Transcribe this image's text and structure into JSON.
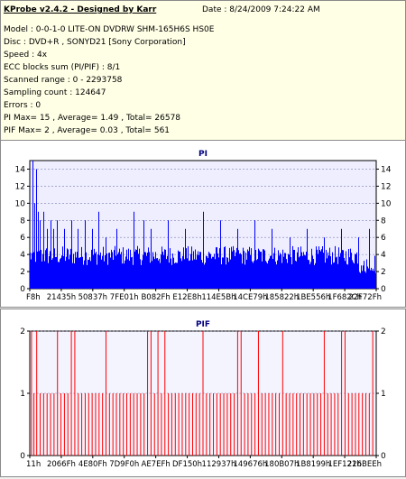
{
  "header": {
    "app_title": "KProbe v2.4.2 - Designed by Karr",
    "date_line": "Date : 8/24/2009 7:24:22 AM",
    "lines": [
      "Model : 0-0-1-0 LITE-ON DVDRW SHM-165H6S HS0E",
      "Disc : DVD+R , SONYD21 [Sony Corporation]",
      "Speed : 4x",
      "ECC blocks sum (PI/PIF) : 8/1",
      "Scanned range : 0 - 2293758",
      "Sampling count : 124647",
      "Errors : 0",
      "PI Max= 15 , Average= 1.49 , Total= 26578",
      "PIF Max= 2 , Average= 0.03 , Total= 561"
    ]
  },
  "colors": {
    "pi_bar": "#0000ff",
    "pif_bar": "#ff0000",
    "title_color": "#000080",
    "pi_plot_bg": "#eeeeff",
    "pif_plot_bg": "#f4f4ff"
  },
  "chart_data": [
    {
      "type": "bar",
      "title": "PI",
      "ylim": [
        0,
        15
      ],
      "y_ticks": [
        0,
        2,
        4,
        6,
        8,
        10,
        12,
        14
      ],
      "x_tick_labels": [
        "F8h",
        "21435h",
        "50837h",
        "7FE01h",
        "B082Fh",
        "E12E8h",
        "114E5Bh",
        "14CE79h",
        "185822h",
        "1BE556h",
        "1F682Ch",
        "22F72Fh"
      ],
      "x_range": [
        0,
        2293758
      ],
      "max": 15,
      "average": 1.49,
      "baseline_max": 5,
      "spikes": [
        [
          0.01,
          15
        ],
        [
          0.015,
          10
        ],
        [
          0.02,
          14
        ],
        [
          0.025,
          9
        ],
        [
          0.03,
          8
        ],
        [
          0.04,
          9
        ],
        [
          0.05,
          7
        ],
        [
          0.06,
          8
        ],
        [
          0.07,
          7
        ],
        [
          0.08,
          8
        ],
        [
          0.1,
          7
        ],
        [
          0.12,
          8
        ],
        [
          0.14,
          7
        ],
        [
          0.16,
          8
        ],
        [
          0.18,
          7
        ],
        [
          0.2,
          9
        ],
        [
          0.22,
          6
        ],
        [
          0.25,
          7
        ],
        [
          0.3,
          9
        ],
        [
          0.33,
          8
        ],
        [
          0.35,
          7
        ],
        [
          0.4,
          8
        ],
        [
          0.45,
          7
        ],
        [
          0.5,
          9
        ],
        [
          0.55,
          8
        ],
        [
          0.6,
          7
        ],
        [
          0.65,
          8
        ],
        [
          0.7,
          7
        ],
        [
          0.75,
          6
        ],
        [
          0.8,
          7
        ],
        [
          0.85,
          6
        ],
        [
          0.9,
          7
        ],
        [
          0.95,
          6
        ],
        [
          0.98,
          7
        ]
      ]
    },
    {
      "type": "bar",
      "title": "PIF",
      "ylim": [
        0,
        2
      ],
      "y_ticks": [
        0,
        1,
        2
      ],
      "x_tick_labels": [
        "11h",
        "2066Fh",
        "4E80Fh",
        "7D9F0h",
        "AE7EFh",
        "DF150h",
        "112937h",
        "149676h",
        "180B07h",
        "1B8199h",
        "1EF121h",
        "226BEEh"
      ],
      "x_range": [
        0,
        2293758
      ],
      "max": 2,
      "average": 0.03,
      "bars_value_2": [
        0.005,
        0.02,
        0.08,
        0.12,
        0.13,
        0.22,
        0.34,
        0.35,
        0.37,
        0.39,
        0.5,
        0.6,
        0.61,
        0.66,
        0.73,
        0.85,
        0.9,
        0.91,
        0.99
      ],
      "bars_value_1": [
        0.012,
        0.03,
        0.04,
        0.05,
        0.06,
        0.07,
        0.09,
        0.1,
        0.11,
        0.14,
        0.15,
        0.16,
        0.17,
        0.18,
        0.19,
        0.2,
        0.21,
        0.23,
        0.24,
        0.25,
        0.26,
        0.27,
        0.28,
        0.29,
        0.3,
        0.31,
        0.32,
        0.33,
        0.36,
        0.38,
        0.4,
        0.41,
        0.42,
        0.43,
        0.44,
        0.45,
        0.46,
        0.47,
        0.48,
        0.49,
        0.51,
        0.52,
        0.53,
        0.54,
        0.55,
        0.56,
        0.57,
        0.58,
        0.59,
        0.62,
        0.63,
        0.64,
        0.65,
        0.67,
        0.68,
        0.69,
        0.7,
        0.71,
        0.72,
        0.74,
        0.75,
        0.76,
        0.77,
        0.78,
        0.79,
        0.8,
        0.81,
        0.82,
        0.83,
        0.84,
        0.86,
        0.87,
        0.88,
        0.89,
        0.92,
        0.93,
        0.94,
        0.95,
        0.96,
        0.97,
        0.98
      ]
    }
  ]
}
